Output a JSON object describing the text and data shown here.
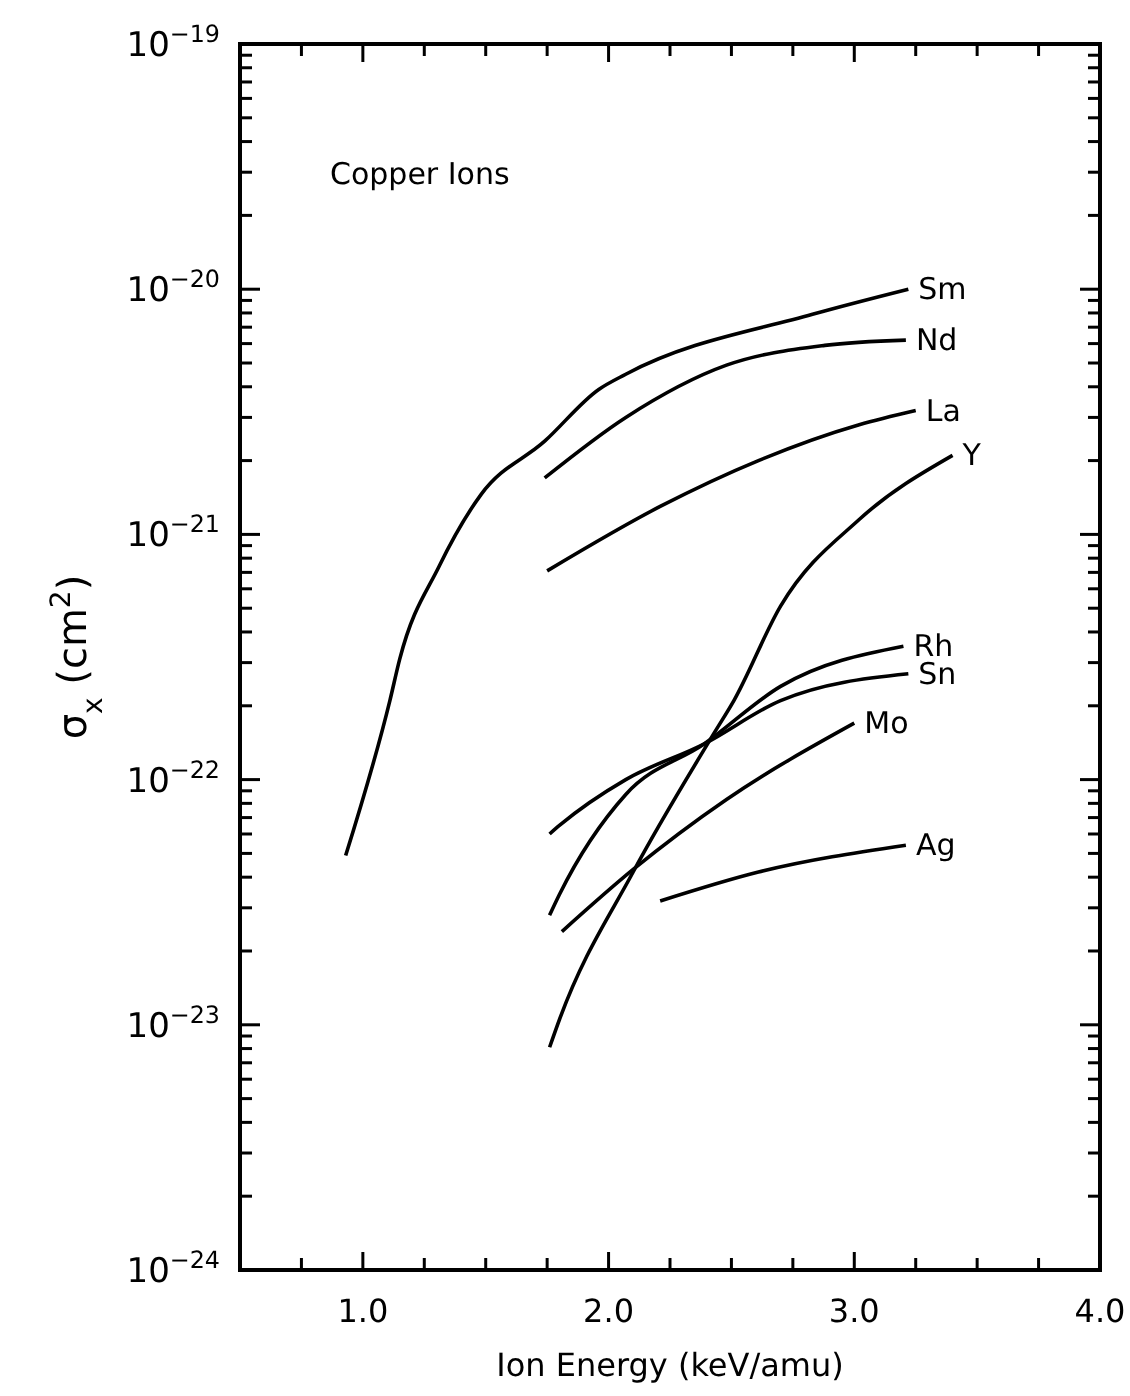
{
  "chart_data": {
    "type": "line",
    "xlabel": "Ion Energy (keV/amu)",
    "ylabel": "σ$_{x}$ (cm$^{2}$)",
    "annotations": [
      "Copper Ions"
    ],
    "log": "y",
    "xlim": [
      0.5,
      4.0
    ],
    "ylim": [
      1e-24,
      1e-19
    ],
    "grid": false,
    "legend": false,
    "marker": "none",
    "line_style": "solid",
    "xticks": [
      {
        "value": 0.75,
        "label": null
      },
      {
        "value": 1.0,
        "label": "1.0"
      },
      {
        "value": 1.25,
        "label": null
      },
      {
        "value": 1.5,
        "label": null
      },
      {
        "value": 1.75,
        "label": null
      },
      {
        "value": 2.0,
        "label": "2.0"
      },
      {
        "value": 2.25,
        "label": null
      },
      {
        "value": 2.5,
        "label": null
      },
      {
        "value": 2.75,
        "label": null
      },
      {
        "value": 3.0,
        "label": "3.0"
      },
      {
        "value": 3.25,
        "label": null
      },
      {
        "value": 3.5,
        "label": null
      },
      {
        "value": 3.75,
        "label": null
      },
      {
        "value": 4.0,
        "label": "4.0"
      }
    ],
    "yticks": [
      {
        "value": 1e-24,
        "label": "10$^{−24}$"
      },
      {
        "value": 2e-24,
        "label": null
      },
      {
        "value": 3e-24,
        "label": null
      },
      {
        "value": 4e-24,
        "label": null
      },
      {
        "value": 5e-24,
        "label": null
      },
      {
        "value": 6e-24,
        "label": null
      },
      {
        "value": 7e-24,
        "label": null
      },
      {
        "value": 8e-24,
        "label": null
      },
      {
        "value": 9e-24,
        "label": null
      },
      {
        "value": 1e-23,
        "label": "10$^{−23}$"
      },
      {
        "value": 2e-23,
        "label": null
      },
      {
        "value": 3e-23,
        "label": null
      },
      {
        "value": 4e-23,
        "label": null
      },
      {
        "value": 5e-23,
        "label": null
      },
      {
        "value": 6e-23,
        "label": null
      },
      {
        "value": 7e-23,
        "label": null
      },
      {
        "value": 8e-23,
        "label": null
      },
      {
        "value": 9e-23,
        "label": null
      },
      {
        "value": 1e-22,
        "label": "10$^{−22}$"
      },
      {
        "value": 2e-22,
        "label": null
      },
      {
        "value": 3e-22,
        "label": null
      },
      {
        "value": 4e-22,
        "label": null
      },
      {
        "value": 5e-22,
        "label": null
      },
      {
        "value": 6e-22,
        "label": null
      },
      {
        "value": 7e-22,
        "label": null
      },
      {
        "value": 8e-22,
        "label": null
      },
      {
        "value": 9e-22,
        "label": null
      },
      {
        "value": 1e-21,
        "label": "10$^{−21}$"
      },
      {
        "value": 2e-21,
        "label": null
      },
      {
        "value": 3e-21,
        "label": null
      },
      {
        "value": 4e-21,
        "label": null
      },
      {
        "value": 5e-21,
        "label": null
      },
      {
        "value": 6e-21,
        "label": null
      },
      {
        "value": 7e-21,
        "label": null
      },
      {
        "value": 8e-21,
        "label": null
      },
      {
        "value": 9e-21,
        "label": null
      },
      {
        "value": 1e-20,
        "label": "10$^{−20}$"
      },
      {
        "value": 2e-20,
        "label": null
      },
      {
        "value": 3e-20,
        "label": null
      },
      {
        "value": 4e-20,
        "label": null
      },
      {
        "value": 5e-20,
        "label": null
      },
      {
        "value": 6e-20,
        "label": null
      },
      {
        "value": 7e-20,
        "label": null
      },
      {
        "value": 8e-20,
        "label": null
      },
      {
        "value": 9e-20,
        "label": null
      },
      {
        "value": 1e-19,
        "label": "10$^{−19}$"
      }
    ],
    "series": [
      {
        "name": "Sm",
        "color": "#000000",
        "x": [
          0.93,
          1.11,
          1.15,
          1.31,
          1.48,
          1.74,
          1.96,
          2.07,
          2.83,
          3.22
        ],
        "values": [
          4.9e-23,
          2.1e-22,
          3.1e-22,
          7.4e-22,
          1.45e-21,
          2.4e-21,
          3.9e-21,
          4.5e-21,
          7.9e-21,
          1e-20
        ]
      },
      {
        "name": "Nd",
        "color": "#000000",
        "x": [
          1.74,
          2.07,
          2.48,
          2.88,
          3.21
        ],
        "values": [
          1.7e-21,
          3e-21,
          4.9e-21,
          5.9e-21,
          6.2e-21
        ]
      },
      {
        "name": "La",
        "color": "#000000",
        "x": [
          1.75,
          2.21,
          2.61,
          3.02,
          3.25
        ],
        "values": [
          7.1e-22,
          1.3e-21,
          2e-21,
          2.8e-21,
          3.2e-21
        ]
      },
      {
        "name": "Y",
        "color": "#000000",
        "x": [
          1.76,
          1.8,
          2.1,
          2.43,
          2.51,
          2.7,
          3.02,
          3.4
        ],
        "values": [
          8.1e-24,
          1.05e-23,
          4.2e-23,
          1.55e-22,
          2.1e-22,
          5.1e-22,
          1.15e-21,
          2.1e-21
        ]
      },
      {
        "name": "Rh",
        "color": "#000000",
        "x": [
          1.76,
          1.8,
          2.07,
          2.39,
          2.7,
          3.2
        ],
        "values": [
          2.8e-23,
          3.4e-23,
          8.7e-23,
          1.4e-22,
          2.4e-22,
          3.5e-22
        ]
      },
      {
        "name": "Sn",
        "color": "#000000",
        "x": [
          1.76,
          1.8,
          2.07,
          2.39,
          2.7,
          3.22
        ],
        "values": [
          6e-23,
          6.5e-23,
          1e-22,
          1.4e-22,
          2.1e-22,
          2.7e-22
        ]
      },
      {
        "name": "Mo",
        "color": "#000000",
        "x": [
          1.81,
          2.1,
          2.48,
          3.0
        ],
        "values": [
          2.4e-23,
          4.3e-23,
          8.3e-23,
          1.7e-22
        ]
      },
      {
        "name": "Ag",
        "color": "#000000",
        "x": [
          2.21,
          2.61,
          3.21
        ],
        "values": [
          3.2e-23,
          4.2e-23,
          5.4e-23
        ]
      }
    ]
  }
}
